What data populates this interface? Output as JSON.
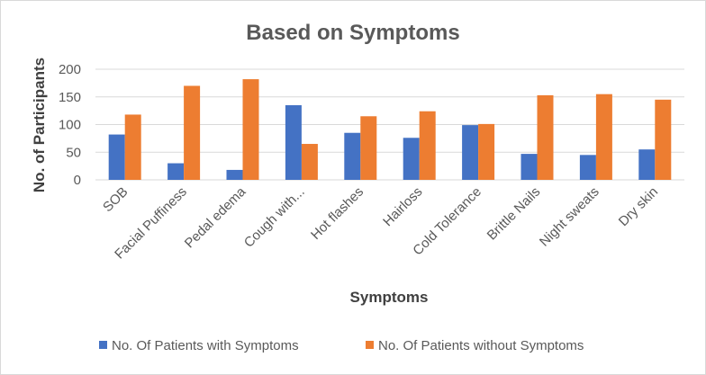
{
  "chart_data": {
    "type": "bar",
    "title": "Based on Symptoms",
    "xlabel": "Symptoms",
    "ylabel": "No. of Participants",
    "ylim": [
      0,
      200
    ],
    "yticks": [
      0,
      50,
      100,
      150,
      200
    ],
    "grid": true,
    "legend_position": "bottom",
    "categories": [
      "SOB",
      "Facial Puffiness",
      "Pedal edema",
      "Cough with...",
      "Hot flashes",
      "Hairloss",
      "Cold Tolerance",
      "Brittle Nails",
      "Night sweats",
      "Dry skin"
    ],
    "series": [
      {
        "name": "No. Of Patients with Symptoms",
        "color": "#4472C4",
        "values": [
          82,
          30,
          18,
          135,
          85,
          76,
          99,
          47,
          45,
          55
        ]
      },
      {
        "name": "No. Of Patients without Symptoms",
        "color": "#ED7D31",
        "values": [
          118,
          170,
          182,
          65,
          115,
          124,
          101,
          153,
          155,
          145
        ]
      }
    ]
  }
}
